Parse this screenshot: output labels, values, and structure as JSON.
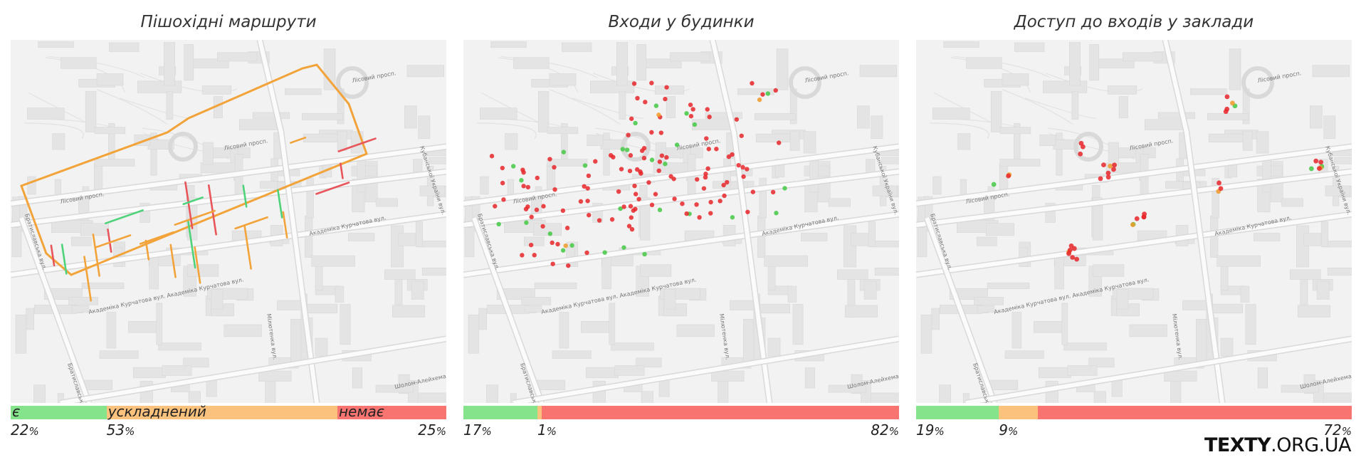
{
  "colors": {
    "green": "#84e38b",
    "orange": "#fbc27d",
    "red": "#f87470",
    "route_green": "#4fd37a",
    "route_orange": "#f2a33a",
    "route_red": "#e8555a",
    "dot_red": "#e8262a",
    "dot_green": "#44c944",
    "dot_orange": "#f09a2a"
  },
  "logo": {
    "bold": "TEXTY",
    "rest": ".ORG.UA"
  },
  "map_labels": {
    "lisovyi": "Лісовий просп.",
    "kurchatova": "Академіка Курчатова вул.",
    "bratyslavska": "Братиславська вул.",
    "milyutenka": "Мілютенка вул.",
    "kubanska": "Кубанської України вул.",
    "sholom": "Шолом-Алейхема вул."
  },
  "chart_data": [
    {
      "type": "bar",
      "title": "Пішохідні маршрути",
      "stacked": true,
      "orientation": "horizontal",
      "categories": [
        "є",
        "ускладнений",
        "немає"
      ],
      "values": [
        22,
        53,
        25
      ],
      "value_labels": [
        "22",
        "53",
        "25"
      ],
      "unit": "%",
      "xlim": [
        0,
        100
      ]
    },
    {
      "type": "bar",
      "title": "Входи у будинки",
      "stacked": true,
      "orientation": "horizontal",
      "categories": [
        "є",
        "ускладнений",
        "немає"
      ],
      "values": [
        17,
        1,
        82
      ],
      "value_labels": [
        "17",
        "1",
        "82"
      ],
      "unit": "%",
      "xlim": [
        0,
        100
      ]
    },
    {
      "type": "bar",
      "title": "Доступ до входів у заклади",
      "stacked": true,
      "orientation": "horizontal",
      "categories": [
        "є",
        "ускладнений",
        "немає"
      ],
      "values": [
        19,
        9,
        72
      ],
      "value_labels": [
        "19",
        "9",
        "72"
      ],
      "unit": "%",
      "xlim": [
        0,
        100
      ]
    }
  ]
}
